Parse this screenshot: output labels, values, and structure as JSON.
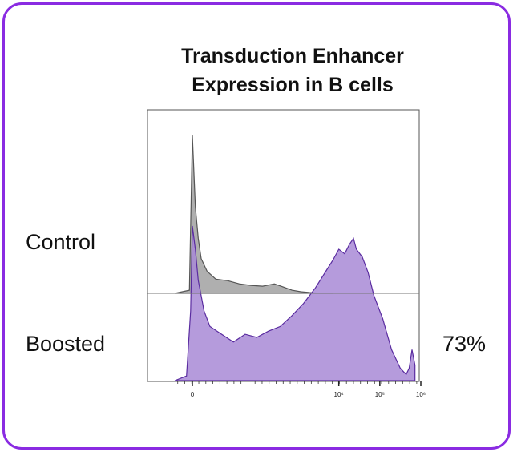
{
  "chart_data": {
    "type": "area",
    "title_line1": "Transduction Enhancer",
    "title_line2": "Expression in B cells",
    "x_scale": "biexponential",
    "x_tick_labels": [
      "0",
      "10⁴",
      "10⁵",
      "10⁶"
    ],
    "series": [
      {
        "name": "Control",
        "color": "#a6a6a6",
        "x": [
          -0.3,
          -0.05,
          0,
          0.05,
          0.1,
          0.15,
          0.25,
          0.4,
          0.6,
          0.8,
          1,
          1.2,
          1.4,
          1.55,
          1.7,
          1.85,
          2,
          2.2,
          2.4
        ],
        "y": [
          0,
          0.02,
          1.0,
          0.55,
          0.35,
          0.22,
          0.14,
          0.09,
          0.08,
          0.06,
          0.05,
          0.045,
          0.06,
          0.04,
          0.02,
          0.01,
          0.005,
          0,
          0
        ]
      },
      {
        "name": "Boosted",
        "color": "#a88ad6",
        "x": [
          -0.3,
          -0.1,
          -0.03,
          0,
          0.05,
          0.1,
          0.2,
          0.3,
          0.5,
          0.7,
          0.9,
          1.1,
          1.3,
          1.5,
          1.7,
          1.9,
          2.1,
          2.3,
          2.4,
          2.5,
          2.6,
          2.68,
          2.75,
          2.8,
          2.9,
          3.0,
          3.1,
          3.25,
          3.4,
          3.55,
          3.65,
          3.7,
          3.75,
          3.8
        ],
        "y": [
          0,
          0.03,
          0.45,
          1.0,
          0.85,
          0.65,
          0.45,
          0.35,
          0.3,
          0.25,
          0.3,
          0.28,
          0.32,
          0.35,
          0.42,
          0.5,
          0.6,
          0.72,
          0.78,
          0.85,
          0.82,
          0.88,
          0.92,
          0.85,
          0.8,
          0.7,
          0.55,
          0.4,
          0.2,
          0.08,
          0.04,
          0.08,
          0.2,
          0.1
        ]
      }
    ],
    "annotations": [
      {
        "series": "Boosted",
        "text": "73%"
      }
    ]
  }
}
